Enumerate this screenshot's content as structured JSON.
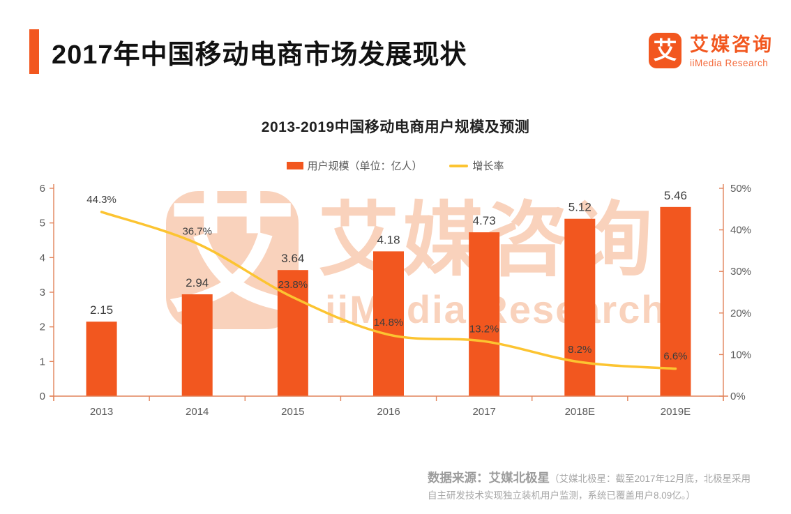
{
  "header": {
    "title": "2017年中国移动电商市场发展现状"
  },
  "brand": {
    "icon_char": "艾",
    "name_cn": "艾媒咨询",
    "name_en": "iiMedia Research"
  },
  "chart": {
    "title": "2013-2019中国移动电商用户规模及预测",
    "legend_bar_label": "用户规模（单位：亿人）",
    "legend_line_label": "增长率"
  },
  "chart_data": {
    "type": "bar+line",
    "title": "2013-2019中国移动电商用户规模及预测",
    "categories": [
      "2013",
      "2014",
      "2015",
      "2016",
      "2017",
      "2018E",
      "2019E"
    ],
    "series": [
      {
        "name": "用户规模（单位：亿人）",
        "type": "bar",
        "axis": "left",
        "values": [
          2.15,
          2.94,
          3.64,
          4.18,
          4.73,
          5.12,
          5.46
        ],
        "labels": [
          "2.15",
          "2.94",
          "3.64",
          "4.18",
          "4.73",
          "5.12",
          "5.46"
        ],
        "color": "#f2571f"
      },
      {
        "name": "增长率",
        "type": "line",
        "axis": "right",
        "values": [
          44.3,
          36.7,
          23.8,
          14.8,
          13.2,
          8.2,
          6.6
        ],
        "labels": [
          "44.3%",
          "36.7%",
          "23.8%",
          "14.8%",
          "13.2%",
          "8.2%",
          "6.6%"
        ],
        "color": "#fcc431"
      }
    ],
    "left_axis": {
      "min": 0,
      "max": 6,
      "tick_labels": [
        "0",
        "1",
        "2",
        "3",
        "4",
        "5",
        "6"
      ]
    },
    "right_axis": {
      "min": 0,
      "max": 50,
      "tick_labels": [
        "0%",
        "10%",
        "20%",
        "30%",
        "40%",
        "50%"
      ]
    },
    "grid": false,
    "legend_position": "top"
  },
  "footer": {
    "source_main": "数据来源：艾媒北极星",
    "source_note": "（艾媒北极星：截至2017年12月底，北极星采用自主研发技术实现独立装机用户监测，系统已覆盖用户8.09亿。）"
  },
  "colors": {
    "accent": "#f2571f",
    "line": "#fcc431",
    "axis": "#e2835a",
    "watermark": "#f9d2bc",
    "label_dark": "#3d3d3d",
    "axis_text": "#595959",
    "footer_text": "#9c9c9c"
  }
}
